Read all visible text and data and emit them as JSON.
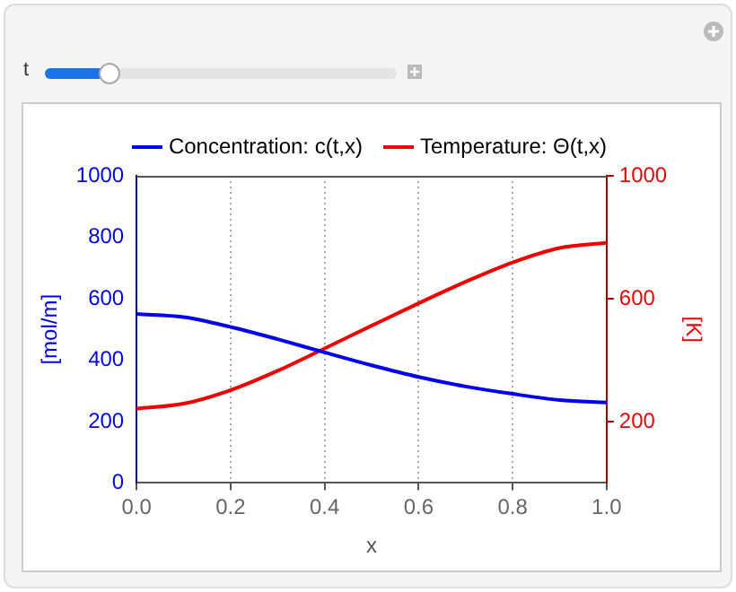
{
  "chart_data": {
    "type": "line",
    "xlabel": "x",
    "ylabel": "[mol/m]",
    "y2label": "[K]",
    "annotations": [
      "t"
    ],
    "x": [
      0,
      0.1,
      0.2,
      0.3,
      0.4,
      0.5,
      0.6,
      0.7,
      0.8,
      0.9,
      1.0
    ],
    "series": [
      {
        "name": "Concentration: c(t,x)",
        "color": "#0000ee",
        "values": [
          550,
          540,
          508,
          468,
          425,
          383,
          345,
          314,
          290,
          270,
          262
        ]
      },
      {
        "name": "Temperature: Θ(t,x)",
        "color": "#ee0000",
        "axis": "y2",
        "values": [
          242,
          258,
          302,
          365,
          438,
          512,
          585,
          655,
          718,
          765,
          782
        ]
      }
    ],
    "xlim": [
      0,
      1
    ],
    "xticks": [
      {
        "value": 0,
        "label": "0.0"
      },
      {
        "value": 0.2,
        "label": "0.2"
      },
      {
        "value": 0.4,
        "label": "0.4"
      },
      {
        "value": 0.6,
        "label": "0.6"
      },
      {
        "value": 0.8,
        "label": "0.8"
      },
      {
        "value": 1,
        "label": "1.0"
      }
    ],
    "ylim": [
      0,
      1000
    ],
    "yticks": [
      0,
      200,
      400,
      600,
      800,
      1000
    ],
    "y2lim": [
      0,
      1000
    ],
    "y2ticks": [
      200,
      600,
      1000
    ],
    "grid": "x",
    "legend": "top",
    "marker": "none",
    "line_style": "solid"
  }
}
